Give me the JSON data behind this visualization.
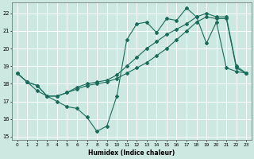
{
  "xlabel": "Humidex (Indice chaleur)",
  "bg_color": "#cce8e0",
  "grid_color": "#ffffff",
  "line_color": "#1a6b5a",
  "xlim": [
    -0.5,
    23.5
  ],
  "ylim": [
    14.8,
    22.6
  ],
  "xticks": [
    0,
    1,
    2,
    3,
    4,
    5,
    6,
    7,
    8,
    9,
    10,
    11,
    12,
    13,
    14,
    15,
    16,
    17,
    18,
    19,
    20,
    21,
    22,
    23
  ],
  "yticks": [
    15,
    16,
    17,
    18,
    19,
    20,
    21,
    22
  ],
  "line1_x": [
    0,
    1,
    2,
    3,
    4,
    5,
    6,
    7,
    8,
    9,
    10,
    11,
    12,
    13,
    14,
    15,
    16,
    17,
    18,
    19,
    20,
    21,
    22,
    23
  ],
  "line1_y": [
    18.6,
    18.1,
    17.6,
    17.3,
    17.0,
    16.7,
    16.6,
    16.1,
    15.3,
    15.6,
    17.3,
    20.5,
    21.4,
    21.5,
    20.9,
    21.7,
    21.6,
    22.3,
    21.8,
    20.3,
    21.5,
    18.9,
    18.7,
    18.6
  ],
  "line2_x": [
    0,
    1,
    2,
    3,
    4,
    5,
    6,
    7,
    8,
    9,
    10,
    11,
    12,
    13,
    14,
    15,
    16,
    17,
    18,
    19,
    20,
    21,
    22,
    23
  ],
  "line2_y": [
    18.6,
    18.1,
    17.9,
    17.3,
    17.3,
    17.5,
    17.7,
    17.9,
    18.0,
    18.1,
    18.3,
    18.6,
    18.9,
    19.2,
    19.6,
    20.0,
    20.5,
    21.0,
    21.5,
    21.8,
    21.7,
    21.7,
    18.9,
    18.6
  ],
  "line3_x": [
    0,
    1,
    2,
    3,
    4,
    5,
    6,
    7,
    8,
    9,
    10,
    11,
    12,
    13,
    14,
    15,
    16,
    17,
    18,
    19,
    20,
    21,
    22,
    23
  ],
  "line3_y": [
    18.6,
    18.1,
    17.9,
    17.3,
    17.3,
    17.5,
    17.8,
    18.0,
    18.1,
    18.2,
    18.5,
    19.0,
    19.5,
    20.0,
    20.4,
    20.8,
    21.1,
    21.4,
    21.8,
    22.0,
    21.8,
    21.8,
    19.0,
    18.6
  ]
}
